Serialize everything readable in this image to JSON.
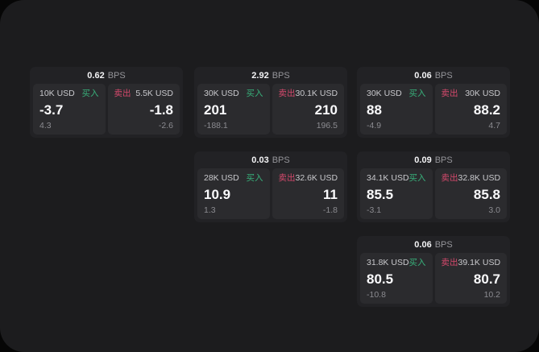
{
  "labels": {
    "bps_unit": "BPS",
    "buy": "买入",
    "sell": "卖出"
  },
  "colors": {
    "buy_green": "#38b17b",
    "sell_red": "#d5496c",
    "panel_bg": "#2b2b2e",
    "card_bg": "#222225",
    "window_bg": "#1c1c1e"
  },
  "cards": [
    {
      "bps": "0.62",
      "col": 0,
      "row": 0,
      "buy": {
        "amount": "10K USD",
        "value": "-3.7",
        "sub": "4.3"
      },
      "sell": {
        "amount": "5.5K USD",
        "value": "-1.8",
        "sub": "-2.6"
      }
    },
    {
      "bps": "2.92",
      "col": 1,
      "row": 0,
      "buy": {
        "amount": "30K USD",
        "value": "201",
        "sub": "-188.1"
      },
      "sell": {
        "amount": "30.1K USD",
        "value": "210",
        "sub": "196.5"
      }
    },
    {
      "bps": "0.06",
      "col": 2,
      "row": 0,
      "buy": {
        "amount": "30K USD",
        "value": "88",
        "sub": "-4.9"
      },
      "sell": {
        "amount": "30K USD",
        "value": "88.2",
        "sub": "4.7"
      }
    },
    {
      "bps": "0.03",
      "col": 1,
      "row": 1,
      "buy": {
        "amount": "28K USD",
        "value": "10.9",
        "sub": "1.3"
      },
      "sell": {
        "amount": "32.6K USD",
        "value": "11",
        "sub": "-1.8"
      }
    },
    {
      "bps": "0.09",
      "col": 2,
      "row": 1,
      "buy": {
        "amount": "34.1K USD",
        "value": "85.5",
        "sub": "-3.1"
      },
      "sell": {
        "amount": "32.8K USD",
        "value": "85.8",
        "sub": "3.0"
      }
    },
    {
      "bps": "0.06",
      "col": 2,
      "row": 2,
      "buy": {
        "amount": "31.8K USD",
        "value": "80.5",
        "sub": "-10.8"
      },
      "sell": {
        "amount": "39.1K USD",
        "value": "80.7",
        "sub": "10.2"
      }
    }
  ]
}
